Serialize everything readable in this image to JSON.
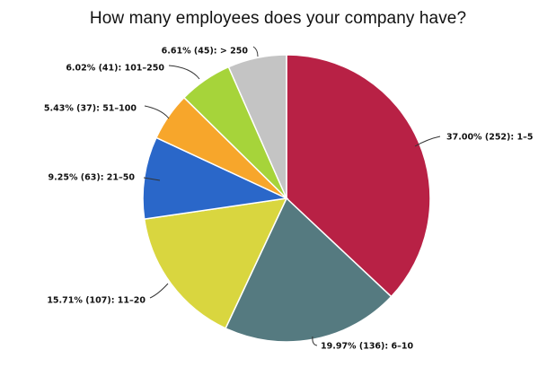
{
  "chart_data": {
    "type": "pie",
    "title": "How many employees does your company have?",
    "categories": [
      "1-5",
      "6-10",
      "11-20",
      "21-50",
      "51-100",
      "101-250",
      "> 250"
    ],
    "values": [
      252,
      136,
      107,
      63,
      37,
      41,
      45
    ],
    "percentages": [
      37.0,
      19.97,
      15.71,
      9.25,
      5.43,
      6.02,
      6.61
    ],
    "colors": [
      "#b82145",
      "#557a80",
      "#d9d63f",
      "#2a67c9",
      "#f7a62b",
      "#a6d43a",
      "#c4c4c4"
    ],
    "labels": [
      "37.00% (252): 1–5",
      "19.97% (136): 6–10",
      "15.71% (107): 11–20",
      "9.25% (63): 21–50",
      "5.43% (37): 51–100",
      "6.02% (41): 101–250",
      "6.61% (45): > 250"
    ],
    "start_angle": "12 o'clock",
    "direction": "clockwise",
    "legend": "none (inline callout labels)"
  },
  "title": "How many employees does your company have?"
}
